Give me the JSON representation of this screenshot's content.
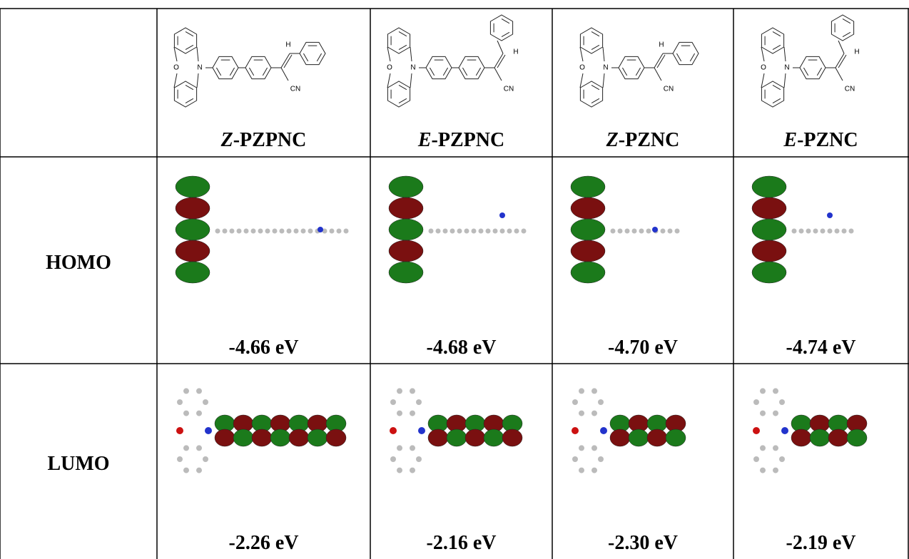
{
  "table": {
    "compounds": [
      {
        "name": "Z-PZPNC",
        "atoms": [
          "O",
          "N",
          "H",
          "CN"
        ]
      },
      {
        "name": "E-PZPNC",
        "atoms": [
          "O",
          "N",
          "H",
          "CN"
        ]
      },
      {
        "name": "Z-PZNC",
        "atoms": [
          "O",
          "N",
          "H",
          "CN"
        ]
      },
      {
        "name": "E-PZNC",
        "atoms": [
          "O",
          "N",
          "H",
          "CN"
        ]
      }
    ],
    "rows": [
      {
        "label": "HOMO",
        "energies": [
          "-4.66 eV",
          "-4.68 eV",
          "-4.70 eV",
          "-4.74 eV"
        ]
      },
      {
        "label": "LUMO",
        "energies": [
          "-2.26 eV",
          "-2.16 eV",
          "-2.30 eV",
          "-2.19 eV"
        ]
      }
    ]
  }
}
